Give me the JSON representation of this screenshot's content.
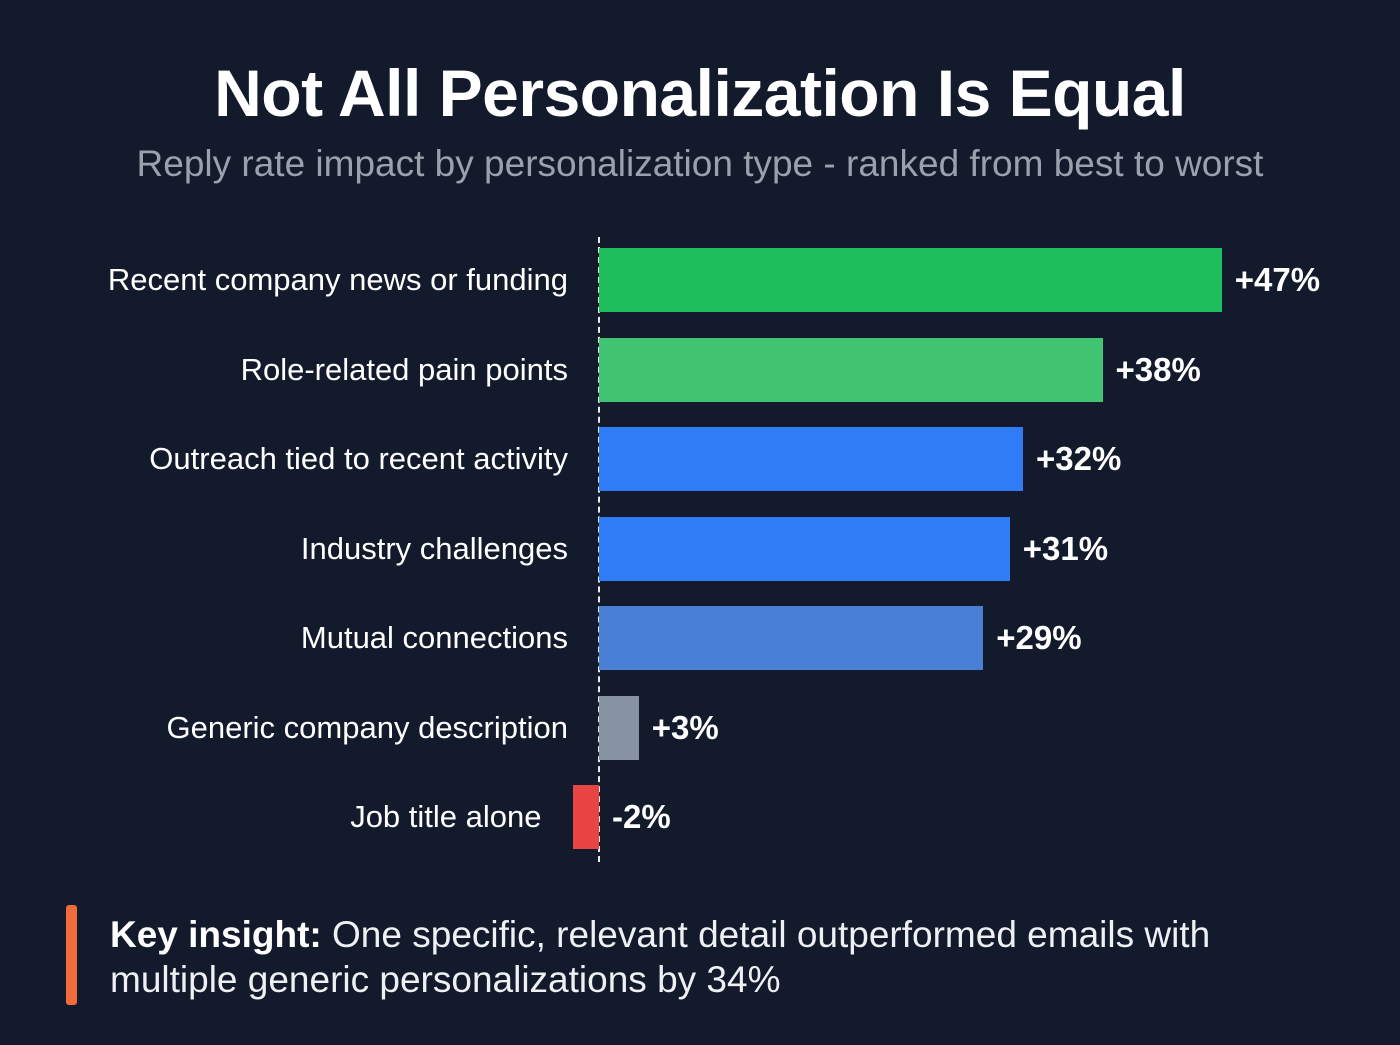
{
  "title": "Not All Personalization Is Equal",
  "subtitle": "Reply rate impact by personalization type - ranked from best to worst",
  "chart_data": {
    "type": "bar",
    "orientation": "horizontal",
    "title": "Not All Personalization Is Equal",
    "subtitle": "Reply rate impact by personalization type - ranked from best to worst",
    "categories": [
      "Recent company news or funding",
      "Role-related pain points",
      "Outreach tied to recent activity",
      "Industry challenges",
      "Mutual connections",
      "Generic company description",
      "Job title alone"
    ],
    "values": [
      47,
      38,
      32,
      31,
      29,
      3,
      -2
    ],
    "value_labels": [
      "+47%",
      "+38%",
      "+32%",
      "+31%",
      "+29%",
      "+3%",
      "-2%"
    ],
    "colors": [
      "#1fbe5c",
      "#40c472",
      "#2f7cf6",
      "#2f7cf6",
      "#4a7fd6",
      "#8792a3",
      "#e84444"
    ],
    "unit": "%",
    "zero_line": "dashed",
    "grid": false
  },
  "insight": {
    "label": "Key insight:",
    "text": " One specific, relevant detail outperformed emails with multiple generic personalizations by 34%",
    "accent_color": "#f26b3a"
  }
}
